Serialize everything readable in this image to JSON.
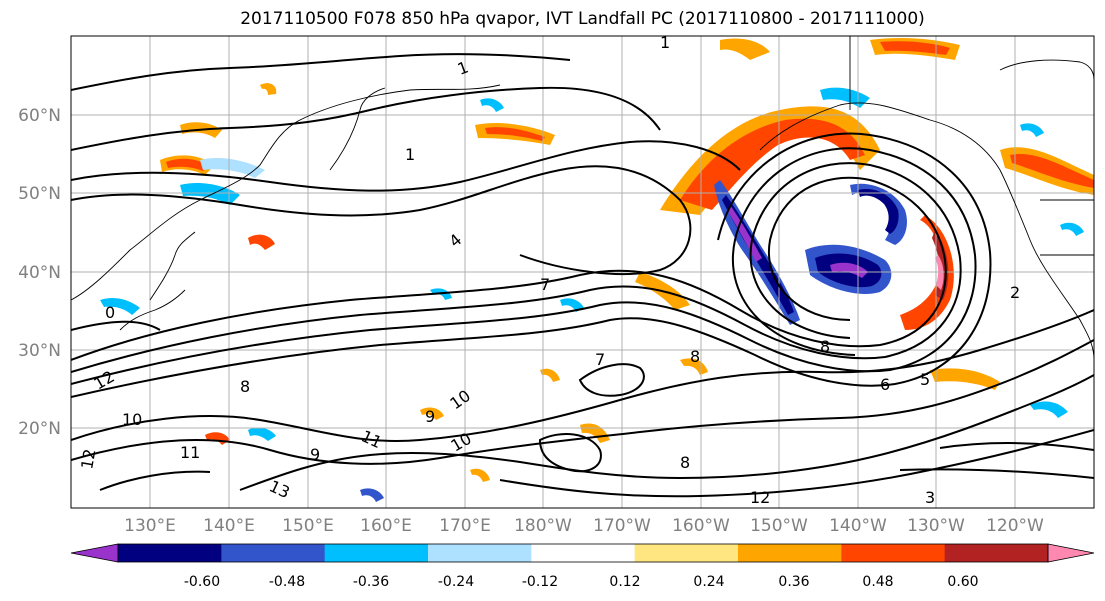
{
  "title": "2017110500 F078 850 hPa qvapor, IVT Landfall PC (2017110800 - 2017111000)",
  "lat_labels": [
    "60°N",
    "50°N",
    "40°N",
    "30°N",
    "20°N"
  ],
  "lon_labels": [
    "130°E",
    "140°E",
    "150°E",
    "160°E",
    "170°E",
    "180°W",
    "170°W",
    "160°W",
    "150°W",
    "140°W",
    "130°W",
    "120°W"
  ],
  "colorbar": {
    "colors": [
      "#9933cc",
      "#000080",
      "#3355cc",
      "#00bfff",
      "#aee0ff",
      "#ffffff",
      "#ffe680",
      "#ffa500",
      "#ff4500",
      "#b22222",
      "#ff88b0"
    ],
    "tick_labels": [
      "-0.60",
      "-0.48",
      "-0.36",
      "-0.24",
      "-0.12",
      "0.12",
      "0.24",
      "0.36",
      "0.48",
      "0.60"
    ]
  },
  "contour_labels": [
    "1",
    "1",
    "1",
    "4",
    "7",
    "7",
    "8",
    "8",
    "8",
    "8",
    "9",
    "9",
    "10",
    "10",
    "10",
    "11",
    "11",
    "12",
    "12",
    "12",
    "13",
    "6",
    "5",
    "3",
    "2",
    "0"
  ]
}
